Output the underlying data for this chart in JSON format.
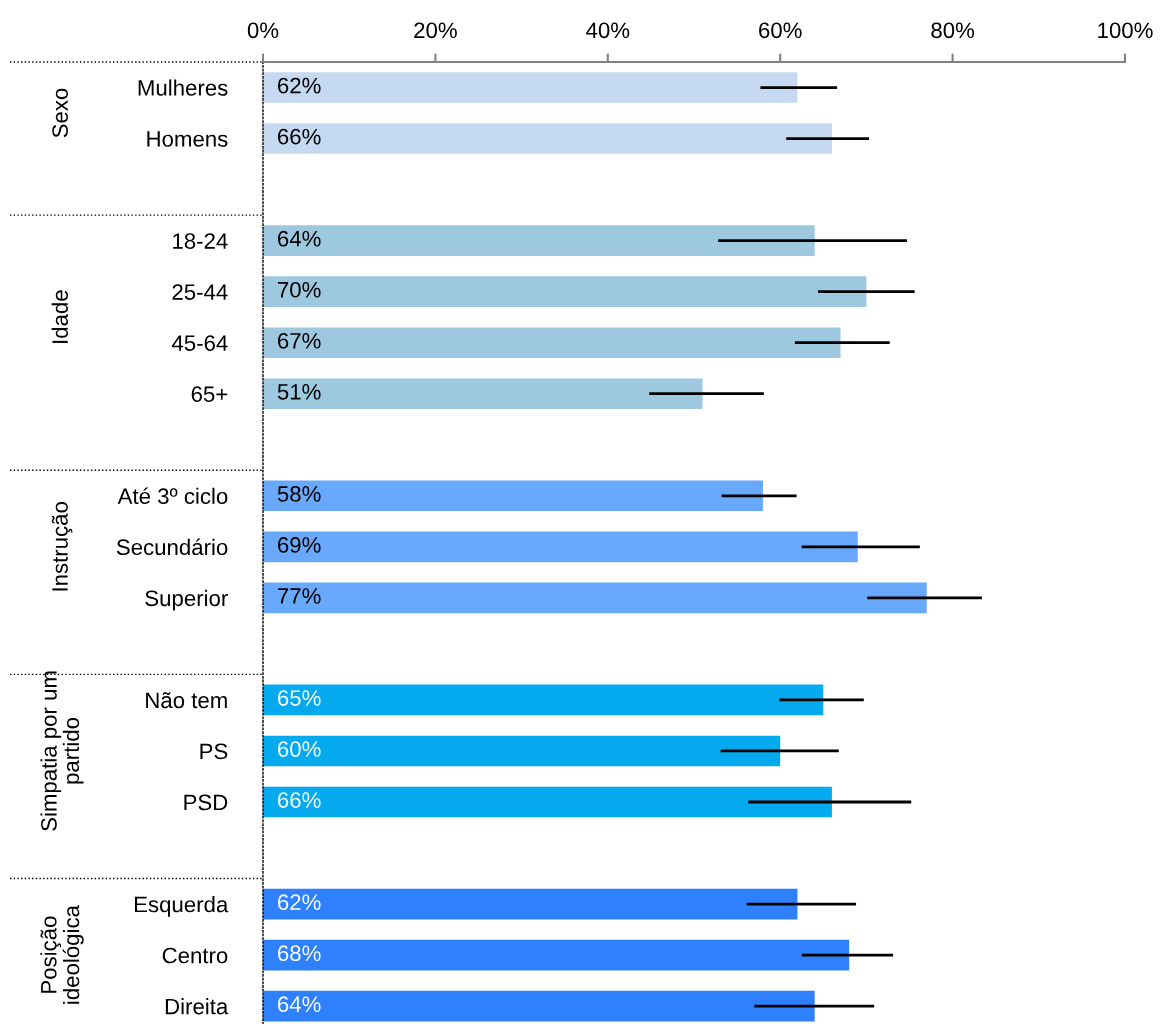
{
  "chart_data": {
    "type": "bar",
    "orientation": "horizontal",
    "categories": [
      "Mulheres",
      "Homens",
      null,
      "18-24",
      "25-44",
      "45-64",
      "65+",
      null,
      "Até 3º ciclo",
      "Secundário",
      "Superior",
      null,
      "Não tem",
      "PS",
      "PSD",
      null,
      "Esquerda",
      "Centro",
      "Direita"
    ],
    "values": [
      62,
      66,
      null,
      64,
      70,
      67,
      51,
      null,
      58,
      69,
      77,
      null,
      65,
      60,
      66,
      null,
      62,
      68,
      64
    ],
    "colors": [
      "#c5d9f0",
      "#c5d9f0",
      null,
      "#9dc8e0",
      "#9dc8e0",
      "#9dc8e0",
      "#9dc8e0",
      null,
      "#69a9fb",
      "#69a9fb",
      "#69a9fb",
      null,
      "#05aaee",
      "#05aaee",
      "#05aaee",
      null,
      "#2f80fd",
      "#2f80fd",
      "#2f80fd"
    ],
    "errors": [
      [
        57.7,
        66.6
      ],
      [
        60.7,
        70.3
      ],
      null,
      [
        52.8,
        74.7
      ],
      [
        64.4,
        75.6
      ],
      [
        61.7,
        72.7
      ],
      [
        44.8,
        58.1
      ],
      null,
      [
        53.2,
        61.9
      ],
      [
        62.5,
        76.2
      ],
      [
        70.1,
        83.4
      ],
      null,
      [
        59.9,
        69.7
      ],
      [
        53.1,
        66.8
      ],
      [
        56.3,
        75.2
      ],
      null,
      [
        56.1,
        68.8
      ],
      [
        62.5,
        73.1
      ],
      [
        57.0,
        70.9
      ]
    ],
    "value_labels": [
      "62%",
      "66%",
      null,
      "64%",
      "70%",
      "67%",
      "51%",
      null,
      "58%",
      "69%",
      "77%",
      null,
      "65%",
      "60%",
      "66%",
      null,
      "62%",
      "68%",
      "64%"
    ],
    "xlim": [
      0,
      100
    ],
    "xticks": [
      {
        "value": 0,
        "label": "0%"
      },
      {
        "value": 20,
        "label": "20%"
      },
      {
        "value": 40,
        "label": "40%"
      },
      {
        "value": 60,
        "label": "60%"
      },
      {
        "value": 80,
        "label": "80%"
      },
      {
        "value": 100,
        "label": "100%"
      }
    ],
    "annotations": [
      "Sexo",
      "Idade",
      "Instrução",
      "Simpatia por um\npartido",
      "Posição\nideológica"
    ],
    "grid": false
  }
}
